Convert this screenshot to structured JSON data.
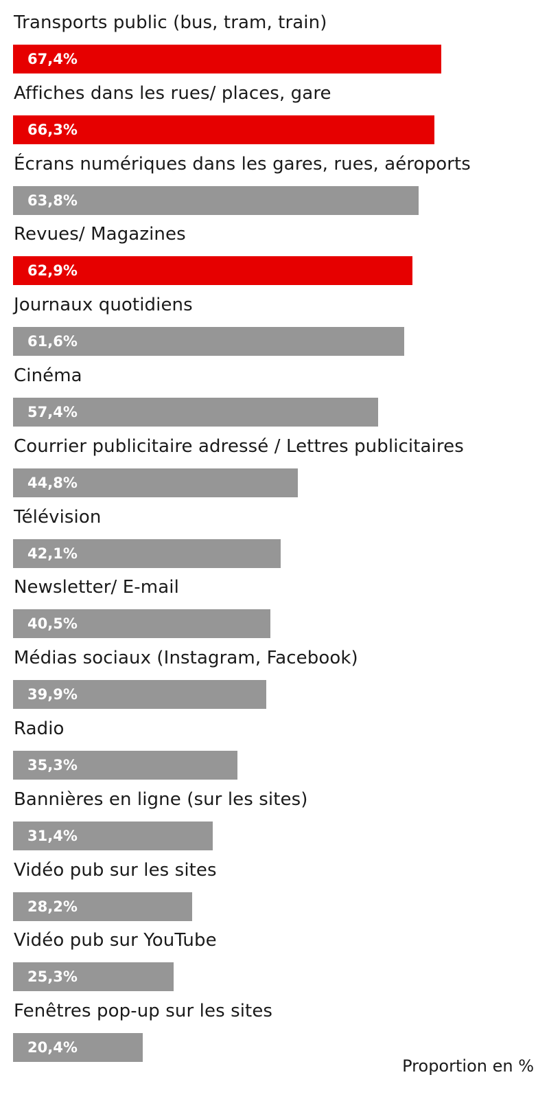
{
  "chart_data": {
    "type": "bar",
    "orientation": "horizontal",
    "categories": [
      "Transports public (bus, tram, train)",
      "Affiches dans les rues/ places, gare",
      "Écrans numériques dans les gares, rues, aéroports",
      "Revues/ Magazines",
      "Journaux quotidiens",
      "Cinéma",
      "Courrier publicitaire adressé / Lettres publicitaires",
      "Télévision",
      "Newsletter/ E-mail",
      "Médias sociaux (Instagram, Facebook)",
      "Radio",
      "Bannières en ligne (sur les sites)",
      "Vidéo pub sur les sites",
      "Vidéo pub sur YouTube",
      "Fenêtres pop-up sur les sites"
    ],
    "values": [
      67.4,
      66.3,
      63.8,
      62.9,
      61.6,
      57.4,
      44.8,
      42.1,
      40.5,
      39.9,
      35.3,
      31.4,
      28.2,
      25.3,
      20.4
    ],
    "value_labels": [
      "67,4%",
      "66,3%",
      "63,8%",
      "62,9%",
      "61,6%",
      "57,4%",
      "44,8%",
      "42,1%",
      "40,5%",
      "39,9%",
      "35,3%",
      "31,4%",
      "28,2%",
      "25,3%",
      "20,4%"
    ],
    "highlighted": [
      true,
      true,
      false,
      true,
      false,
      false,
      false,
      false,
      false,
      false,
      false,
      false,
      false,
      false,
      false
    ],
    "colors": {
      "highlight": "#e60000",
      "default": "#969696",
      "value_text": "#ffffff"
    },
    "xlim": [
      0,
      100
    ],
    "grid": false,
    "legend": "none",
    "footnote": "Proportion en %"
  }
}
